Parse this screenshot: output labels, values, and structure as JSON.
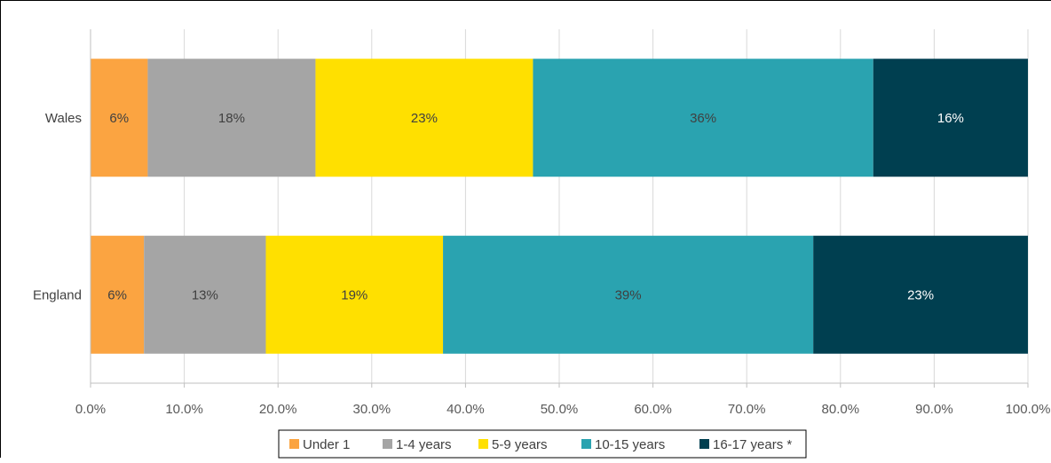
{
  "chart_data": {
    "type": "bar",
    "orientation": "horizontal",
    "stacked": true,
    "categories": [
      "Wales",
      "England"
    ],
    "series": [
      {
        "name": "Under 1",
        "color": "#FBA441",
        "values": [
          6.1,
          5.7
        ],
        "labels": [
          "6%",
          "6%"
        ]
      },
      {
        "name": "1-4 years",
        "color": "#A5A5A5",
        "values": [
          17.9,
          13.0
        ],
        "labels": [
          "18%",
          "13%"
        ]
      },
      {
        "name": "5-9 years",
        "color": "#FFE000",
        "values": [
          23.2,
          18.9
        ],
        "labels": [
          "23%",
          "19%"
        ]
      },
      {
        "name": "10-15 years",
        "color": "#2AA3B0",
        "values": [
          36.3,
          39.5
        ],
        "labels": [
          "36%",
          "39%"
        ]
      },
      {
        "name": "16-17 years *",
        "color": "#003F50",
        "values": [
          16.5,
          22.9
        ],
        "labels": [
          "16%",
          "23%"
        ]
      }
    ],
    "xlim": [
      0,
      100
    ],
    "xticks": [
      "0.0%",
      "10.0%",
      "20.0%",
      "30.0%",
      "40.0%",
      "50.0%",
      "60.0%",
      "70.0%",
      "80.0%",
      "90.0%",
      "100.0%"
    ],
    "grid": "vertical",
    "legend_position": "bottom"
  }
}
